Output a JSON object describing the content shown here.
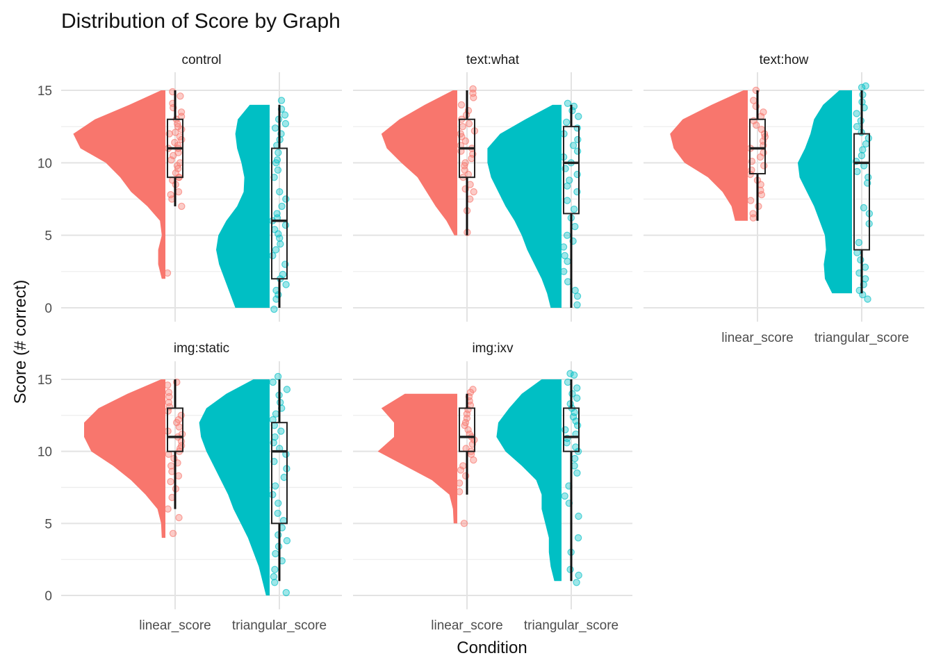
{
  "chart_data": {
    "type": "raincloud",
    "title": "Distribution of Score by Graph",
    "xlabel": "Condition",
    "ylabel": "Score (# correct)",
    "ylim": [
      0,
      15
    ],
    "yticks": [
      0,
      5,
      10,
      15
    ],
    "categories": [
      "linear_score",
      "triangular_score"
    ],
    "colors": {
      "linear_score": "#F8766D",
      "triangular_score": "#00BFC4"
    },
    "grid": true,
    "facets": [
      {
        "name": "control",
        "series": [
          {
            "category": "linear_score",
            "min": 7,
            "q1": 9,
            "median": 11,
            "q3": 13,
            "max": 15,
            "density": [
              [
                2.0,
                0.1
              ],
              [
                3.0,
                0.2
              ],
              [
                4.0,
                0.2
              ],
              [
                5.0,
                0.1
              ],
              [
                6.0,
                0.15
              ],
              [
                7.0,
                0.5
              ],
              [
                8.0,
                0.95
              ],
              [
                9.0,
                1.25
              ],
              [
                10.0,
                1.65
              ],
              [
                11.0,
                2.35
              ],
              [
                12.0,
                2.55
              ],
              [
                13.0,
                1.95
              ],
              [
                14.0,
                1.0
              ],
              [
                15.0,
                0.12
              ]
            ],
            "points": [
              2.4,
              7.0,
              7.5,
              7.8,
              8.0,
              8.5,
              8.8,
              9.0,
              9.0,
              9.3,
              9.6,
              9.8,
              10.0,
              10.2,
              10.5,
              10.7,
              11.0,
              11.0,
              11.2,
              11.4,
              11.6,
              11.8,
              12.0,
              12.1,
              12.3,
              12.5,
              12.7,
              13.0,
              13.2,
              13.5,
              13.8,
              14.1,
              14.6,
              14.9
            ]
          },
          {
            "category": "triangular_score",
            "min": 0,
            "q1": 2,
            "median": 6,
            "q3": 11,
            "max": 14,
            "density": [
              [
                0.0,
                0.95
              ],
              [
                1.0,
                1.1
              ],
              [
                2.0,
                1.25
              ],
              [
                3.0,
                1.4
              ],
              [
                4.0,
                1.48
              ],
              [
                5.0,
                1.42
              ],
              [
                6.0,
                1.2
              ],
              [
                7.0,
                0.9
              ],
              [
                8.0,
                0.72
              ],
              [
                9.0,
                0.7
              ],
              [
                10.0,
                0.78
              ],
              [
                11.0,
                0.9
              ],
              [
                12.0,
                0.95
              ],
              [
                13.0,
                0.88
              ],
              [
                14.0,
                0.55
              ]
            ],
            "points": [
              -0.1,
              0.6,
              0.9,
              1.2,
              1.6,
              2.0,
              2.3,
              3.0,
              3.6,
              4.0,
              4.4,
              4.8,
              5.1,
              5.4,
              5.7,
              6.0,
              6.2,
              6.5,
              7.0,
              7.5,
              8.0,
              9.0,
              9.5,
              10.0,
              10.2,
              10.7,
              11.2,
              11.6,
              12.0,
              12.4,
              12.7,
              13.0,
              13.3,
              13.7,
              14.3
            ]
          }
        ]
      },
      {
        "name": "text:what",
        "series": [
          {
            "category": "linear_score",
            "min": 5,
            "q1": 9,
            "median": 11,
            "q3": 13,
            "max": 15,
            "density": [
              [
                5.0,
                0.08
              ],
              [
                6.0,
                0.3
              ],
              [
                7.0,
                0.6
              ],
              [
                8.0,
                0.85
              ],
              [
                9.0,
                1.1
              ],
              [
                10.0,
                1.55
              ],
              [
                11.0,
                1.95
              ],
              [
                12.0,
                2.1
              ],
              [
                13.0,
                1.6
              ],
              [
                14.0,
                0.9
              ],
              [
                15.0,
                0.12
              ]
            ],
            "points": [
              5.2,
              6.7,
              7.5,
              8.0,
              8.2,
              8.5,
              9.0,
              9.2,
              9.5,
              9.8,
              10.0,
              10.3,
              10.6,
              10.8,
              11.0,
              11.2,
              11.5,
              11.8,
              12.0,
              12.2,
              12.5,
              12.7,
              13.0,
              13.3,
              13.6,
              14.0,
              14.5,
              14.8,
              15.1
            ]
          },
          {
            "category": "triangular_score",
            "min": 0,
            "q1": 6.5,
            "median": 10,
            "q3": 12.5,
            "max": 14,
            "density": [
              [
                0.0,
                0.3
              ],
              [
                1.0,
                0.4
              ],
              [
                2.0,
                0.55
              ],
              [
                3.0,
                0.75
              ],
              [
                4.0,
                0.95
              ],
              [
                5.0,
                1.1
              ],
              [
                6.0,
                1.3
              ],
              [
                7.0,
                1.55
              ],
              [
                8.0,
                1.75
              ],
              [
                9.0,
                1.95
              ],
              [
                10.0,
                2.05
              ],
              [
                11.0,
                2.05
              ],
              [
                12.0,
                1.7
              ],
              [
                13.0,
                1.0
              ],
              [
                14.0,
                0.25
              ]
            ],
            "points": [
              0.2,
              0.8,
              1.2,
              1.8,
              2.5,
              3.2,
              3.6,
              4.2,
              4.6,
              5.0,
              5.6,
              6.2,
              6.8,
              7.4,
              8.0,
              8.4,
              8.8,
              9.2,
              9.6,
              10.0,
              10.4,
              10.8,
              11.2,
              11.6,
              12.0,
              12.4,
              12.8,
              13.2,
              13.6,
              13.9,
              14.1
            ]
          }
        ]
      },
      {
        "name": "text:how",
        "series": [
          {
            "category": "linear_score",
            "min": 6,
            "q1": 9.25,
            "median": 11,
            "q3": 13,
            "max": 15,
            "density": [
              [
                6.0,
                0.35
              ],
              [
                7.0,
                0.45
              ],
              [
                8.0,
                0.7
              ],
              [
                9.0,
                1.1
              ],
              [
                10.0,
                1.75
              ],
              [
                11.0,
                2.05
              ],
              [
                12.0,
                2.15
              ],
              [
                13.0,
                1.8
              ],
              [
                14.0,
                1.0
              ],
              [
                15.0,
                0.12
              ]
            ],
            "points": [
              6.2,
              6.5,
              7.0,
              7.4,
              7.8,
              8.1,
              8.5,
              8.8,
              9.2,
              9.5,
              9.8,
              10.1,
              10.4,
              10.7,
              11.0,
              11.2,
              11.5,
              11.8,
              12.0,
              12.3,
              12.6,
              12.9,
              13.2,
              13.5,
              13.9,
              14.3,
              15.0
            ]
          },
          {
            "category": "triangular_score",
            "min": 1,
            "q1": 4,
            "median": 10,
            "q3": 12,
            "max": 15,
            "density": [
              [
                1.0,
                0.55
              ],
              [
                2.0,
                0.75
              ],
              [
                3.0,
                0.78
              ],
              [
                4.0,
                0.72
              ],
              [
                5.0,
                0.75
              ],
              [
                6.0,
                0.9
              ],
              [
                7.0,
                1.05
              ],
              [
                8.0,
                1.25
              ],
              [
                9.0,
                1.45
              ],
              [
                10.0,
                1.5
              ],
              [
                11.0,
                1.3
              ],
              [
                12.0,
                1.15
              ],
              [
                13.0,
                1.05
              ],
              [
                14.0,
                0.8
              ],
              [
                15.0,
                0.35
              ]
            ],
            "points": [
              0.6,
              0.9,
              1.2,
              1.6,
              2.0,
              2.4,
              2.8,
              3.3,
              3.8,
              4.5,
              5.8,
              6.5,
              6.9,
              8.6,
              9.0,
              9.4,
              9.8,
              10.1,
              10.5,
              10.9,
              11.3,
              11.7,
              12.1,
              12.5,
              12.9,
              13.4,
              13.8,
              14.2,
              14.7,
              15.2,
              15.3
            ]
          }
        ]
      },
      {
        "name": "img:static",
        "series": [
          {
            "category": "linear_score",
            "min": 6,
            "q1": 10,
            "median": 11,
            "q3": 13,
            "max": 15,
            "density": [
              [
                4.0,
                0.1
              ],
              [
                5.0,
                0.12
              ],
              [
                6.0,
                0.22
              ],
              [
                7.0,
                0.55
              ],
              [
                8.0,
                0.95
              ],
              [
                9.0,
                1.45
              ],
              [
                10.0,
                2.05
              ],
              [
                11.0,
                2.25
              ],
              [
                12.0,
                2.25
              ],
              [
                13.0,
                1.85
              ],
              [
                14.0,
                1.05
              ],
              [
                15.0,
                0.12
              ]
            ],
            "points": [
              4.3,
              5.4,
              6.0,
              6.8,
              7.4,
              7.9,
              8.3,
              8.6,
              9.0,
              9.2,
              9.5,
              9.8,
              10.0,
              10.2,
              10.4,
              10.7,
              11.0,
              11.2,
              11.4,
              11.7,
              12.0,
              12.2,
              12.5,
              12.8,
              13.1,
              13.4,
              13.8,
              14.1,
              14.6,
              14.8
            ]
          },
          {
            "category": "triangular_score",
            "min": 1,
            "q1": 5,
            "median": 10,
            "q3": 12,
            "max": 15,
            "density": [
              [
                0.0,
                0.1
              ],
              [
                1.0,
                0.2
              ],
              [
                2.0,
                0.3
              ],
              [
                3.0,
                0.45
              ],
              [
                4.0,
                0.6
              ],
              [
                5.0,
                0.8
              ],
              [
                6.0,
                1.0
              ],
              [
                7.0,
                1.15
              ],
              [
                8.0,
                1.35
              ],
              [
                9.0,
                1.55
              ],
              [
                10.0,
                1.75
              ],
              [
                11.0,
                1.9
              ],
              [
                12.0,
                1.95
              ],
              [
                13.0,
                1.75
              ],
              [
                14.0,
                1.2
              ],
              [
                15.0,
                0.45
              ]
            ],
            "points": [
              0.2,
              0.9,
              1.3,
              1.8,
              2.4,
              2.9,
              3.4,
              3.8,
              4.2,
              4.7,
              5.2,
              5.7,
              6.4,
              7.0,
              7.6,
              8.2,
              8.8,
              9.3,
              9.8,
              10.2,
              10.6,
              11.0,
              11.4,
              11.8,
              12.2,
              12.6,
              13.0,
              13.4,
              13.9,
              14.3,
              14.8,
              15.2
            ]
          }
        ]
      },
      {
        "name": "img:ixv",
        "series": [
          {
            "category": "linear_score",
            "min": 7,
            "q1": 10,
            "median": 11,
            "q3": 13,
            "max": 14,
            "density": [
              [
                5.0,
                0.1
              ],
              [
                6.0,
                0.12
              ],
              [
                7.0,
                0.22
              ],
              [
                8.0,
                0.7
              ],
              [
                9.0,
                1.45
              ],
              [
                10.0,
                2.2
              ],
              [
                11.0,
                1.75
              ],
              [
                12.0,
                1.75
              ],
              [
                13.0,
                2.1
              ],
              [
                14.0,
                1.45
              ]
            ],
            "points": [
              5.0,
              7.2,
              7.8,
              8.3,
              8.7,
              9.0,
              9.4,
              9.8,
              10.0,
              10.2,
              10.5,
              10.8,
              11.0,
              11.2,
              11.5,
              11.8,
              12.0,
              12.3,
              12.6,
              12.9,
              13.2,
              13.5,
              13.8,
              14.1,
              14.3
            ]
          },
          {
            "category": "triangular_score",
            "min": 1,
            "q1": 10,
            "median": 11,
            "q3": 13,
            "max": 15,
            "density": [
              [
                1.0,
                0.2
              ],
              [
                2.0,
                0.3
              ],
              [
                3.0,
                0.35
              ],
              [
                4.0,
                0.35
              ],
              [
                5.0,
                0.45
              ],
              [
                6.0,
                0.55
              ],
              [
                7.0,
                0.55
              ],
              [
                8.0,
                0.7
              ],
              [
                9.0,
                1.1
              ],
              [
                10.0,
                1.55
              ],
              [
                11.0,
                1.8
              ],
              [
                12.0,
                1.75
              ],
              [
                13.0,
                1.45
              ],
              [
                14.0,
                1.1
              ],
              [
                15.0,
                0.55
              ]
            ],
            "points": [
              0.9,
              1.4,
              1.8,
              3.0,
              4.0,
              5.5,
              6.4,
              6.9,
              7.6,
              8.5,
              9.0,
              9.5,
              10.0,
              10.3,
              10.6,
              10.9,
              11.2,
              11.5,
              11.8,
              12.1,
              12.4,
              12.7,
              13.0,
              13.3,
              13.7,
              14.0,
              14.4,
              14.8,
              15.3,
              15.4
            ]
          }
        ]
      }
    ]
  }
}
